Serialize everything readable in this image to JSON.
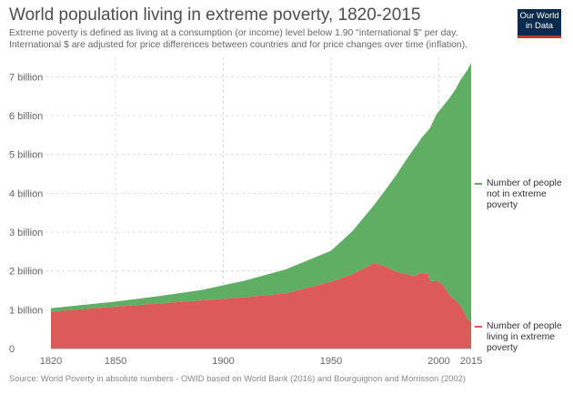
{
  "title": "World population living in extreme poverty, 1820-2015",
  "subtitle_lines": [
    "Extreme poverty is defined as living at a consumption (or income) level below 1.90 \"international $\" per day.",
    "International $ are adjusted for price differences between countries and for price changes over time (inflation)."
  ],
  "logo": {
    "line1": "Our World",
    "line2": "in Data"
  },
  "source": "Source: World Poverty in absolute numbers - OWID based on World Bank (2016) and Bourguignon and Morrisson (2002)",
  "colors": {
    "not_poor": "#5fae63",
    "poor": "#dc5a5a",
    "grid": "#dddddd"
  },
  "legend": {
    "not_poor": "Number of people not in extreme poverty",
    "poor": "Number of people living in extreme poverty"
  },
  "chart_data": {
    "type": "area",
    "stacked": true,
    "xlim": [
      1820,
      2015
    ],
    "ylim": [
      0,
      7500000000
    ],
    "x_ticks": [
      1820,
      1850,
      1900,
      1950,
      2000,
      2015
    ],
    "y_ticks": [
      {
        "value": 0,
        "label": "0"
      },
      {
        "value": 1000000000,
        "label": "1 billion"
      },
      {
        "value": 2000000000,
        "label": "2 billion"
      },
      {
        "value": 3000000000,
        "label": "3 billion"
      },
      {
        "value": 4000000000,
        "label": "4 billion"
      },
      {
        "value": 5000000000,
        "label": "5 billion"
      },
      {
        "value": 6000000000,
        "label": "6 billion"
      },
      {
        "value": 7000000000,
        "label": "7 billion"
      }
    ],
    "grid": true,
    "legend_position": "right",
    "series": [
      {
        "name": "Number of people living in extreme poverty",
        "color": "#dc5a5a",
        "x": [
          1820,
          1850,
          1870,
          1890,
          1910,
          1929,
          1950,
          1960,
          1970,
          1975,
          1980,
          1985,
          1988,
          1990,
          1992,
          1993,
          1995,
          1996,
          1999,
          2002,
          2005,
          2008,
          2010,
          2011,
          2012,
          2013,
          2015
        ],
        "values": [
          950000000,
          1080000000,
          1160000000,
          1240000000,
          1320000000,
          1420000000,
          1720000000,
          1920000000,
          2200000000,
          2120000000,
          1980000000,
          1920000000,
          1860000000,
          1900000000,
          1950000000,
          1920000000,
          1930000000,
          1730000000,
          1750000000,
          1640000000,
          1370000000,
          1230000000,
          1110000000,
          1010000000,
          900000000,
          780000000,
          700000000
        ]
      },
      {
        "name": "Number of people not in extreme poverty",
        "color": "#5fae63",
        "x": [
          1820,
          1850,
          1870,
          1890,
          1910,
          1929,
          1950,
          1960,
          1970,
          1975,
          1980,
          1985,
          1988,
          1990,
          1992,
          1993,
          1995,
          1996,
          1999,
          2002,
          2005,
          2008,
          2010,
          2011,
          2012,
          2013,
          2015
        ],
        "values": [
          90000000,
          130000000,
          190000000,
          270000000,
          430000000,
          620000000,
          800000000,
          1110000000,
          1500000000,
          1950000000,
          2470000000,
          2950000000,
          3250000000,
          3360000000,
          3480000000,
          3570000000,
          3690000000,
          3960000000,
          4290000000,
          4610000000,
          5080000000,
          5470000000,
          5800000000,
          5980000000,
          6170000000,
          6370000000,
          6650000000
        ]
      }
    ]
  }
}
